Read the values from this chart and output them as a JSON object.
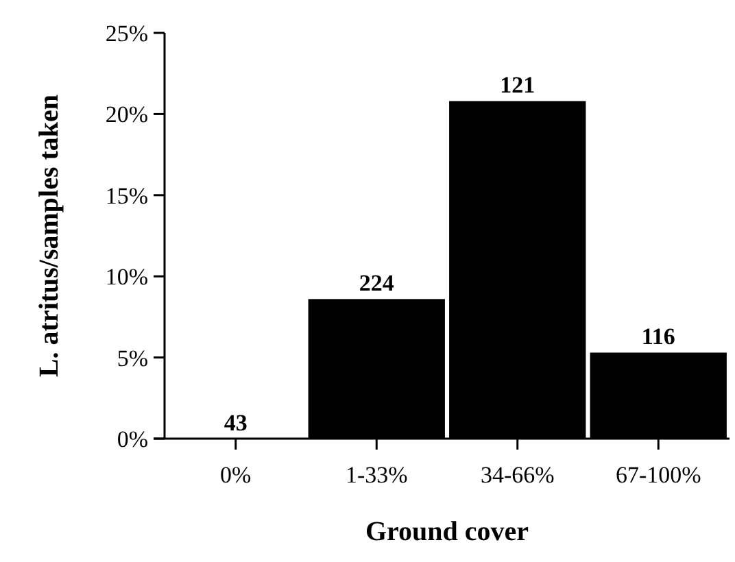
{
  "chart_data": {
    "type": "bar",
    "xlabel": "Ground cover",
    "ylabel": "L. atritus/samples taken",
    "categories": [
      "0%",
      "1-33%",
      "34-66%",
      "67-100%"
    ],
    "values": [
      0,
      8.6,
      20.8,
      5.3
    ],
    "annotations": [
      {
        "text": "43",
        "x": "0%",
        "y": 0
      },
      {
        "text": "224",
        "x": "1-33%",
        "y": 8.6
      },
      {
        "text": "121",
        "x": "34-66%",
        "y": 20.8
      },
      {
        "text": "116",
        "x": "67-100%",
        "y": 5.3
      }
    ],
    "color": "#000000",
    "ylim": [
      0,
      25
    ],
    "yticks": [
      {
        "value": 0,
        "label": "0%"
      },
      {
        "value": 5,
        "label": "5%"
      },
      {
        "value": 10,
        "label": "10%"
      },
      {
        "value": 15,
        "label": "15%"
      },
      {
        "value": 20,
        "label": "20%"
      },
      {
        "value": 25,
        "label": "25%"
      }
    ],
    "grid": false
  }
}
